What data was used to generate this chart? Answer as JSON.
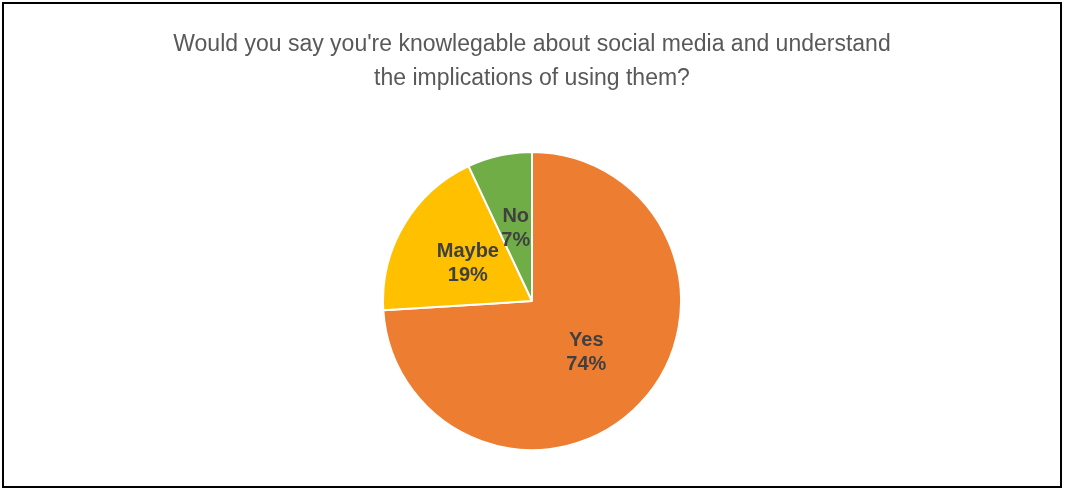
{
  "chart_data": {
    "type": "pie",
    "title": "Would you say you're knowlegable about social media and understand the implications of using them?",
    "categories": [
      "Yes",
      "Maybe",
      "No"
    ],
    "values": [
      74,
      19,
      7
    ],
    "colors": [
      "#ed7d31",
      "#ffc000",
      "#70ad47"
    ],
    "value_labels": [
      "74%",
      "19%",
      "7%"
    ]
  }
}
